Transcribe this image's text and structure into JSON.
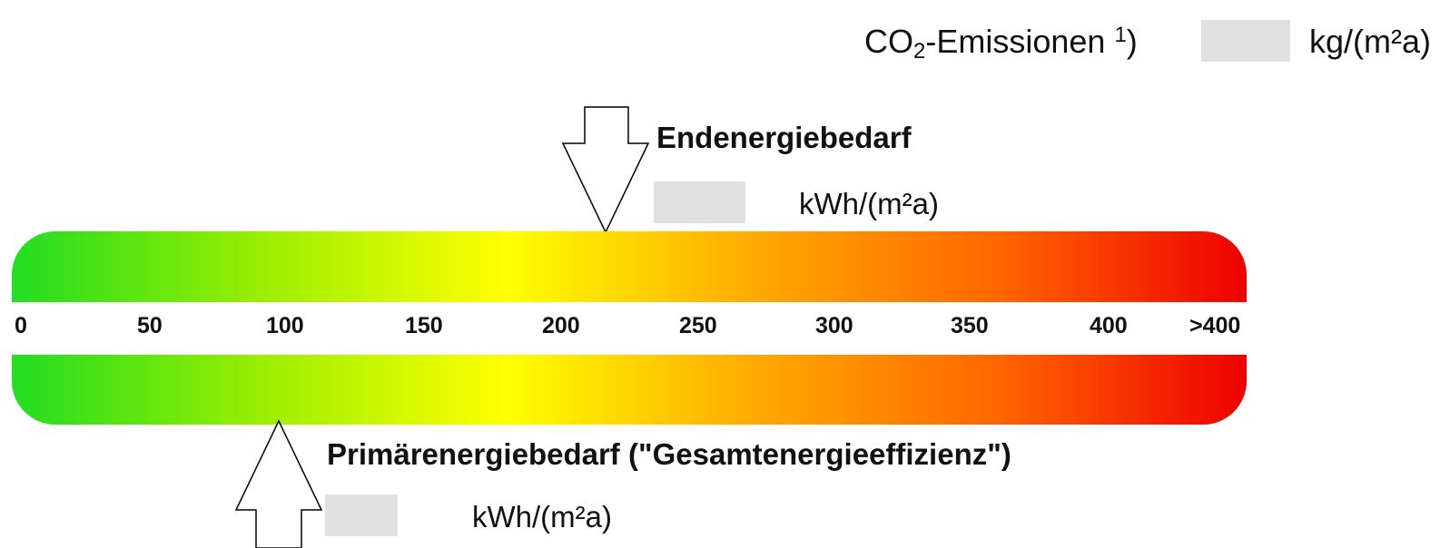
{
  "co2": {
    "label": "CO",
    "label_sub": "2",
    "label_rest": "-Emissionen ",
    "label_sup": "1",
    "label_close": ")",
    "value": "",
    "unit": "kg/(m²a)"
  },
  "end_energy": {
    "title": "Endenergiebedarf",
    "value": "",
    "unit": "kWh/(m²a)",
    "arrow_value": 215
  },
  "primary_energy": {
    "title": "Primärenergiebedarf (\"Gesamtenergieeffizienz\")",
    "value": "",
    "unit": "kWh/(m²a)",
    "arrow_value": 95
  },
  "scale": {
    "ticks": [
      "0",
      "50",
      "100",
      "150",
      "200",
      "250",
      "300",
      "350",
      "400",
      ">400"
    ],
    "range": [
      0,
      450
    ],
    "gradient_colors": [
      "#22dd22",
      "#99ee00",
      "#ffff00",
      "#ffaa00",
      "#ff6600",
      "#ee0000"
    ]
  }
}
